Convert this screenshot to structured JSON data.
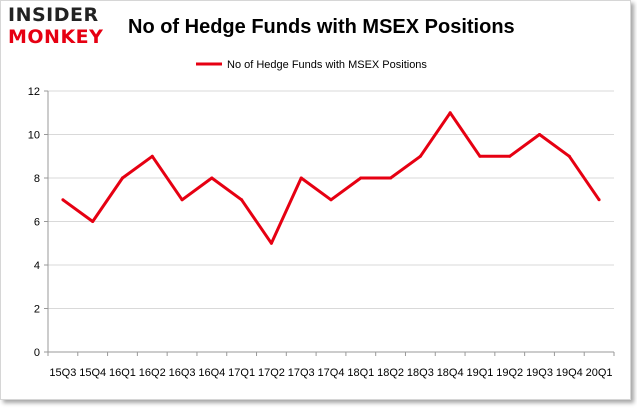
{
  "logo": {
    "line1": "INSIDER",
    "line2": "MONKEY"
  },
  "chart_data": {
    "type": "line",
    "title": "No of Hedge Funds with MSEX Positions",
    "xlabel": "",
    "ylabel": "",
    "categories": [
      "15Q3",
      "15Q4",
      "16Q1",
      "16Q2",
      "16Q3",
      "16Q4",
      "17Q1",
      "17Q2",
      "17Q3",
      "17Q4",
      "18Q1",
      "18Q2",
      "18Q3",
      "18Q4",
      "19Q1",
      "19Q2",
      "19Q3",
      "19Q4",
      "20Q1"
    ],
    "series": [
      {
        "name": "No of Hedge Funds with MSEX Positions",
        "color": "#e60012",
        "values": [
          7,
          6,
          8,
          9,
          7,
          8,
          7,
          5,
          8,
          7,
          8,
          8,
          9,
          11,
          9,
          9,
          10,
          9,
          7
        ]
      }
    ],
    "ylim": [
      0,
      12
    ],
    "yticks": [
      0,
      2,
      4,
      6,
      8,
      10,
      12
    ],
    "grid": true,
    "legend": "top-center"
  }
}
